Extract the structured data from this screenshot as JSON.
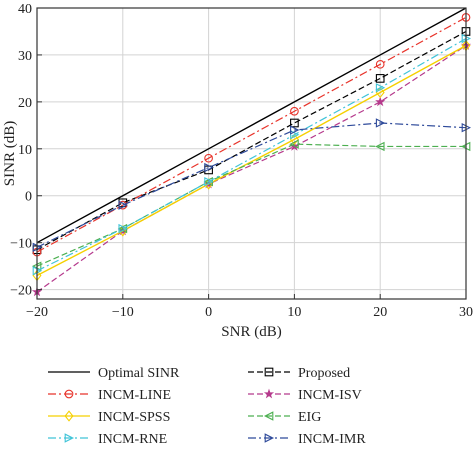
{
  "chart_data": {
    "type": "line",
    "xlabel": "SNR (dB)",
    "ylabel": "SINR (dB)",
    "xlim": [
      -20,
      30
    ],
    "ylim": [
      -22,
      40
    ],
    "xticks": [
      -20,
      -10,
      0,
      10,
      20,
      30
    ],
    "yticks": [
      -20,
      -10,
      0,
      10,
      20,
      30,
      40
    ],
    "xtick_labels": [
      "−20",
      "−10",
      "0",
      "10",
      "20",
      "30"
    ],
    "ytick_labels": [
      "−20",
      "−10",
      "0",
      "10",
      "20",
      "30",
      "40"
    ],
    "grid": true,
    "legend_position": "below plot, two columns",
    "x": [
      -20,
      -10,
      0,
      10,
      20,
      30
    ],
    "series": [
      {
        "name": "Optimal SINR",
        "color": "#000000",
        "dash": "solid",
        "marker": "none",
        "values": [
          -10,
          0,
          10,
          20,
          30,
          40
        ]
      },
      {
        "name": "Proposed",
        "color": "#000000",
        "dash": "dashed",
        "marker": "square",
        "values": [
          -11.5,
          -1.5,
          5.5,
          15.5,
          25,
          35
        ]
      },
      {
        "name": "INCM-LINE",
        "color": "#e8332a",
        "dash": "dashdot",
        "marker": "circle",
        "values": [
          -12,
          -2,
          8,
          18,
          28,
          38
        ]
      },
      {
        "name": "INCM-ISV",
        "color": "#b5398c",
        "dash": "dashed",
        "marker": "star",
        "values": [
          -20.5,
          -7.5,
          2.5,
          10.5,
          20,
          32
        ]
      },
      {
        "name": "INCM-SPSS",
        "color": "#f5d000",
        "dash": "solid",
        "marker": "diamond",
        "values": [
          -17,
          -7.5,
          2.5,
          12,
          22,
          32
        ]
      },
      {
        "name": "EIG",
        "color": "#4caf50",
        "dash": "dashed",
        "marker": "triangle-left",
        "values": [
          -15,
          -7,
          3,
          11,
          10.5,
          10.5
        ]
      },
      {
        "name": "INCM-RNE",
        "color": "#40c4d8",
        "dash": "dashdot",
        "marker": "triangle-right",
        "values": [
          -16,
          -7,
          3,
          13,
          23,
          33.5
        ]
      },
      {
        "name": "INCM-IMR",
        "color": "#2e4a9a",
        "dash": "dashdot",
        "marker": "triangle-right",
        "values": [
          -11,
          -2,
          6,
          14,
          15.5,
          14.5
        ]
      }
    ]
  }
}
